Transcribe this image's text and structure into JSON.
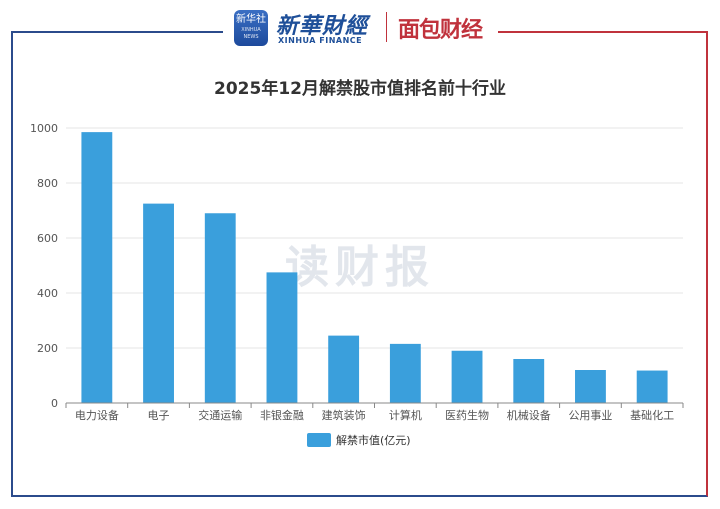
{
  "header": {
    "badge_cn": "新华社",
    "badge_en": "XINHUA NEWS",
    "brand_cn": "新華財經",
    "brand_en": "XINHUA FINANCE",
    "partner": "面包财经"
  },
  "watermark": "读财报",
  "colors": {
    "bar": "#3a9fdc",
    "frame_left": "#2b4b8c",
    "frame_right": "#c0323c"
  },
  "chart_data": {
    "type": "bar",
    "title": "2025年12月解禁股市值排名前十行业",
    "categories": [
      "电力设备",
      "电子",
      "交通运输",
      "非银金融",
      "建筑装饰",
      "计算机",
      "医药生物",
      "机械设备",
      "公用事业",
      "基础化工"
    ],
    "series": [
      {
        "name": "解禁市值(亿元)",
        "values": [
          985,
          725,
          690,
          475,
          245,
          215,
          190,
          160,
          120,
          118
        ]
      }
    ],
    "ylim": [
      0,
      1000
    ],
    "yticks": [
      0,
      200,
      400,
      600,
      800,
      1000
    ],
    "grid": true,
    "legend": "bottom-center"
  }
}
